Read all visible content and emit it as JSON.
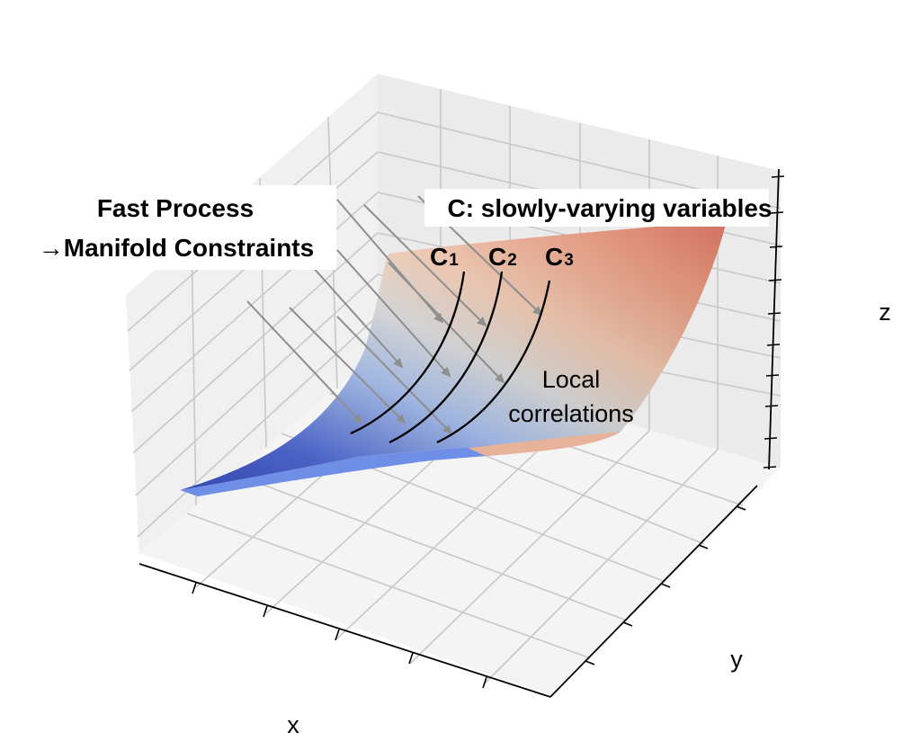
{
  "diagram": {
    "annotations": {
      "fast_process_line1": "Fast Process",
      "fast_process_line2": "→Manifold Constraints",
      "slow_variables": "C: slowly-varying variables",
      "local_line1": "Local",
      "local_line2": "correlations"
    },
    "curve_labels": [
      {
        "letter": "C",
        "sub": "1"
      },
      {
        "letter": "C",
        "sub": "2"
      },
      {
        "letter": "C",
        "sub": "3"
      }
    ],
    "axes": {
      "x": "x",
      "y": "y",
      "z": "z"
    },
    "colors": {
      "low": "#3b4cc0",
      "mid": "#dddddd",
      "high": "#c8523e",
      "pane": "#f2f2f2",
      "grid": "#c8c8c8",
      "arrow": "#8e8e8e"
    },
    "colormap": "coolwarm"
  }
}
